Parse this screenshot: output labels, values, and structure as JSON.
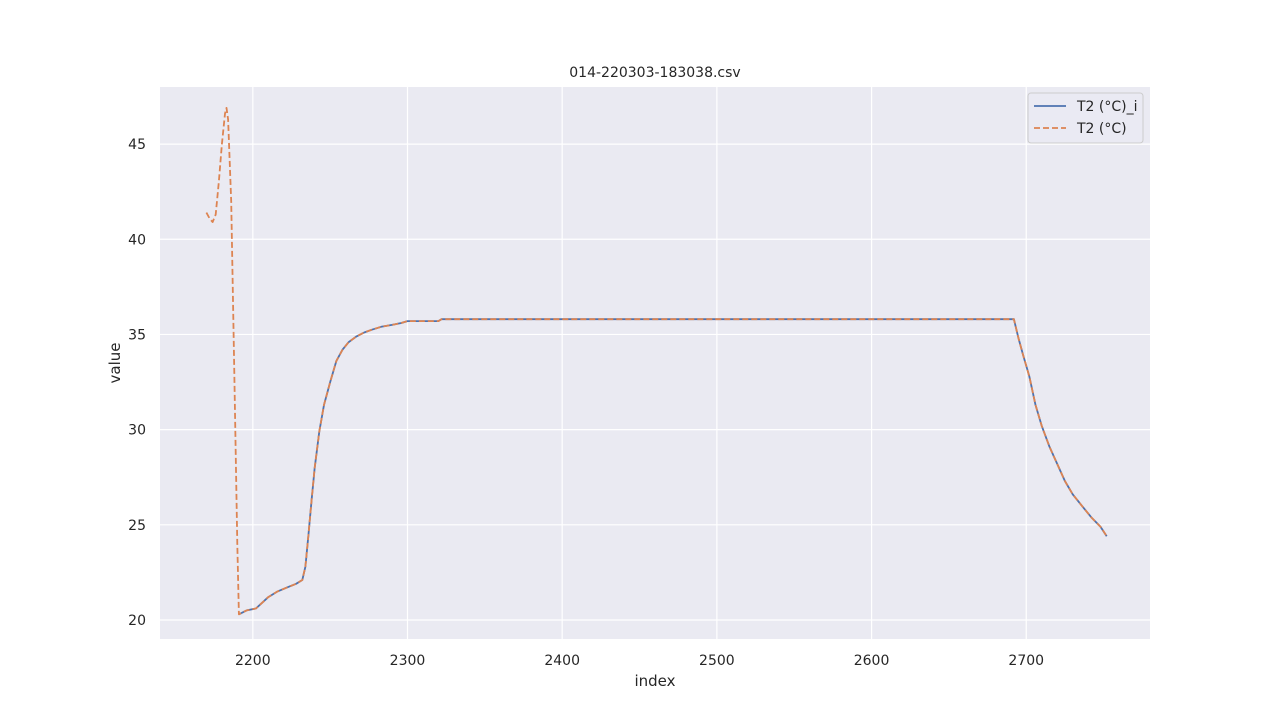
{
  "chart_data": {
    "type": "line",
    "title": "014-220303-183038.csv",
    "xlabel": "index",
    "ylabel": "value",
    "xlim": [
      2140,
      2780
    ],
    "ylim": [
      19,
      48
    ],
    "xticks": [
      2200,
      2300,
      2400,
      2500,
      2600,
      2700
    ],
    "yticks": [
      20,
      25,
      30,
      35,
      40,
      45
    ],
    "grid": true,
    "legend_position": "top-right",
    "series": [
      {
        "name": "T2 (°C)_i",
        "color": "#4c72b0",
        "style": "solid",
        "points": [
          [
            2191,
            20.3
          ],
          [
            2196,
            20.5
          ],
          [
            2202,
            20.6
          ],
          [
            2206,
            20.9
          ],
          [
            2210,
            21.2
          ],
          [
            2216,
            21.5
          ],
          [
            2222,
            21.7
          ],
          [
            2228,
            21.9
          ],
          [
            2232,
            22.1
          ],
          [
            2234,
            22.8
          ],
          [
            2236,
            24.5
          ],
          [
            2238,
            26.3
          ],
          [
            2240,
            28.0
          ],
          [
            2243,
            29.9
          ],
          [
            2246,
            31.3
          ],
          [
            2250,
            32.5
          ],
          [
            2254,
            33.6
          ],
          [
            2258,
            34.2
          ],
          [
            2262,
            34.6
          ],
          [
            2267,
            34.9
          ],
          [
            2272,
            35.1
          ],
          [
            2277,
            35.25
          ],
          [
            2283,
            35.4
          ],
          [
            2290,
            35.5
          ],
          [
            2296,
            35.6
          ],
          [
            2300,
            35.7
          ],
          [
            2320,
            35.7
          ],
          [
            2322,
            35.8
          ],
          [
            2692,
            35.8
          ],
          [
            2695,
            34.8
          ],
          [
            2698,
            33.9
          ],
          [
            2702,
            32.8
          ],
          [
            2706,
            31.3
          ],
          [
            2710,
            30.2
          ],
          [
            2715,
            29.1
          ],
          [
            2720,
            28.2
          ],
          [
            2725,
            27.3
          ],
          [
            2730,
            26.6
          ],
          [
            2736,
            26.0
          ],
          [
            2742,
            25.4
          ],
          [
            2748,
            24.9
          ],
          [
            2752,
            24.4
          ]
        ]
      },
      {
        "name": "T2 (°C)",
        "color": "#dd8452",
        "style": "dashed",
        "points": [
          [
            2170,
            41.4
          ],
          [
            2172,
            41.1
          ],
          [
            2174,
            40.9
          ],
          [
            2176,
            41.3
          ],
          [
            2178,
            43.0
          ],
          [
            2180,
            45.0
          ],
          [
            2182,
            46.6
          ],
          [
            2183,
            46.9
          ],
          [
            2184,
            46.3
          ],
          [
            2186,
            42.0
          ],
          [
            2188,
            33.0
          ],
          [
            2190,
            24.0
          ],
          [
            2191,
            20.3
          ],
          [
            2196,
            20.5
          ],
          [
            2202,
            20.6
          ],
          [
            2206,
            20.9
          ],
          [
            2210,
            21.2
          ],
          [
            2216,
            21.5
          ],
          [
            2222,
            21.7
          ],
          [
            2228,
            21.9
          ],
          [
            2232,
            22.1
          ],
          [
            2234,
            22.8
          ],
          [
            2236,
            24.5
          ],
          [
            2238,
            26.3
          ],
          [
            2240,
            28.0
          ],
          [
            2243,
            29.9
          ],
          [
            2246,
            31.3
          ],
          [
            2250,
            32.5
          ],
          [
            2254,
            33.6
          ],
          [
            2258,
            34.2
          ],
          [
            2262,
            34.6
          ],
          [
            2267,
            34.9
          ],
          [
            2272,
            35.1
          ],
          [
            2277,
            35.25
          ],
          [
            2283,
            35.4
          ],
          [
            2290,
            35.5
          ],
          [
            2296,
            35.6
          ],
          [
            2300,
            35.7
          ],
          [
            2320,
            35.7
          ],
          [
            2322,
            35.8
          ],
          [
            2692,
            35.8
          ],
          [
            2695,
            34.8
          ],
          [
            2698,
            33.9
          ],
          [
            2702,
            32.8
          ],
          [
            2706,
            31.3
          ],
          [
            2710,
            30.2
          ],
          [
            2715,
            29.1
          ],
          [
            2720,
            28.2
          ],
          [
            2725,
            27.3
          ],
          [
            2730,
            26.6
          ],
          [
            2736,
            26.0
          ],
          [
            2742,
            25.4
          ],
          [
            2748,
            24.9
          ],
          [
            2752,
            24.4
          ]
        ]
      }
    ]
  }
}
